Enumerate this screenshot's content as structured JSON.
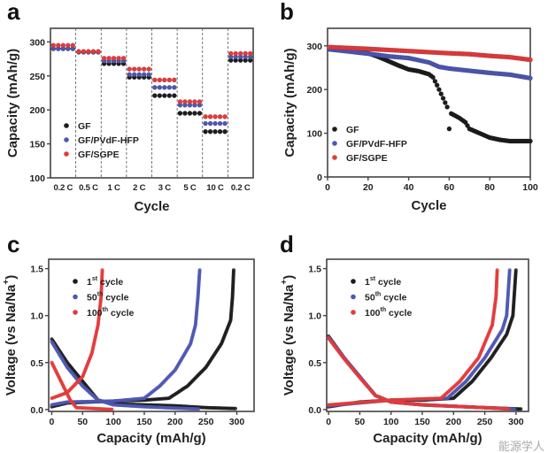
{
  "colors": {
    "black": "#1c1c1c",
    "blue": "#4d57b3",
    "red": "#e23b3b"
  },
  "watermark": "能源学人",
  "chart_data": [
    {
      "panel": "a",
      "type": "scatter",
      "xlabel": "Cycle",
      "ylabel": "Capacity (mAh/g)",
      "ylim": [
        100,
        320
      ],
      "yticks": [
        "100",
        "150",
        "200",
        "250",
        "300"
      ],
      "categories": [
        "0.2 C",
        "0.5 C",
        "1 C",
        "2 C",
        "3 C",
        "5 C",
        "10 C",
        "0.2 C"
      ],
      "points_per_category": 5,
      "legend_position": "lower-left",
      "series": [
        {
          "name": "GF",
          "color": "#1c1c1c",
          "values": [
            290,
            285,
            268,
            248,
            221,
            195,
            168,
            273
          ]
        },
        {
          "name": "GF/PVdF-HFP",
          "color": "#4d57b3",
          "values": [
            290,
            285,
            272,
            252,
            233,
            207,
            180,
            278
          ]
        },
        {
          "name": "GF/SGPE",
          "color": "#e23b3b",
          "values": [
            295,
            286,
            276,
            260,
            244,
            212,
            190,
            283
          ]
        }
      ]
    },
    {
      "panel": "b",
      "type": "scatter",
      "xlabel": "Cycle",
      "ylabel": "Capacity (mAh/g)",
      "xlim": [
        0,
        100
      ],
      "ylim": [
        0,
        340
      ],
      "xticks": [
        "0",
        "20",
        "40",
        "60",
        "80",
        "100"
      ],
      "yticks": [
        "0",
        "100",
        "200",
        "300"
      ],
      "legend_position": "lower-left",
      "series": [
        {
          "name": "GF",
          "color": "#1c1c1c",
          "points": [
            [
              1,
              292
            ],
            [
              10,
              288
            ],
            [
              20,
              283
            ],
            [
              25,
              275
            ],
            [
              30,
              265
            ],
            [
              35,
              255
            ],
            [
              40,
              246
            ],
            [
              45,
              242
            ],
            [
              50,
              235
            ],
            [
              52,
              228
            ],
            [
              54,
              210
            ],
            [
              56,
              190
            ],
            [
              58,
              170
            ],
            [
              59,
              160
            ],
            [
              60,
              110
            ],
            [
              61,
              145
            ],
            [
              65,
              135
            ],
            [
              68,
              125
            ],
            [
              70,
              110
            ],
            [
              75,
              100
            ],
            [
              80,
              90
            ],
            [
              85,
              85
            ],
            [
              90,
              82
            ],
            [
              100,
              82
            ]
          ]
        },
        {
          "name": "GF/PVdF-HFP",
          "color": "#4d57b3",
          "points": [
            [
              1,
              292
            ],
            [
              20,
              282
            ],
            [
              30,
              276
            ],
            [
              40,
              272
            ],
            [
              50,
              262
            ],
            [
              55,
              252
            ],
            [
              60,
              248
            ],
            [
              70,
              243
            ],
            [
              80,
              238
            ],
            [
              90,
              234
            ],
            [
              100,
              226
            ]
          ]
        },
        {
          "name": "GF/SGPE",
          "color": "#e23b3b",
          "points": [
            [
              1,
              297
            ],
            [
              20,
              293
            ],
            [
              40,
              288
            ],
            [
              60,
              283
            ],
            [
              70,
              281
            ],
            [
              80,
              277
            ],
            [
              90,
              274
            ],
            [
              100,
              268
            ]
          ]
        }
      ]
    },
    {
      "panel": "c",
      "type": "line",
      "xlabel": "Capacity (mAh/g)",
      "ylabel": "Voltage (vs Na/Na",
      "ylabel_sup": "+",
      "ylabel_end": ")",
      "xlim": [
        -5,
        328
      ],
      "ylim": [
        -0.02,
        1.6
      ],
      "xticks": [
        "0",
        "50",
        "100",
        "150",
        "200",
        "250",
        "300"
      ],
      "yticks": [
        "0.0",
        "0.5",
        "1.0",
        "1.5"
      ],
      "legend_position": "upper-left",
      "series": [
        {
          "name": "1",
          "sup": "st",
          "suffix": " cycle",
          "color": "#1c1c1c",
          "discharge": [
            [
              0,
              0.75
            ],
            [
              25,
              0.5
            ],
            [
              50,
              0.3
            ],
            [
              75,
              0.1
            ],
            [
              100,
              0.06
            ],
            [
              150,
              0.05
            ],
            [
              200,
              0.04
            ],
            [
              250,
              0.02
            ],
            [
              300,
              0.01
            ]
          ],
          "charge": [
            [
              0,
              0.03
            ],
            [
              25,
              0.07
            ],
            [
              100,
              0.09
            ],
            [
              150,
              0.1
            ],
            [
              190,
              0.12
            ],
            [
              220,
              0.25
            ],
            [
              250,
              0.45
            ],
            [
              275,
              0.7
            ],
            [
              290,
              0.95
            ],
            [
              293,
              1.2
            ],
            [
              295,
              1.5
            ]
          ]
        },
        {
          "name": "50",
          "sup": "th",
          "suffix": " cycle",
          "color": "#4d57b3",
          "discharge": [
            [
              0,
              0.72
            ],
            [
              25,
              0.45
            ],
            [
              50,
              0.25
            ],
            [
              75,
              0.1
            ],
            [
              100,
              0.05
            ],
            [
              150,
              0.03
            ],
            [
              200,
              0.015
            ],
            [
              240,
              0.005
            ]
          ],
          "charge": [
            [
              0,
              0.05
            ],
            [
              25,
              0.08
            ],
            [
              100,
              0.09
            ],
            [
              150,
              0.12
            ],
            [
              175,
              0.25
            ],
            [
              200,
              0.42
            ],
            [
              225,
              0.7
            ],
            [
              233,
              0.9
            ],
            [
              237,
              1.2
            ],
            [
              240,
              1.5
            ]
          ]
        },
        {
          "name": "100",
          "sup": "th",
          "suffix": " cycle",
          "color": "#e23b3b",
          "discharge": [
            [
              0,
              0.5
            ],
            [
              15,
              0.3
            ],
            [
              30,
              0.1
            ],
            [
              40,
              0.02
            ],
            [
              100,
              0
            ]
          ],
          "charge": [
            [
              0,
              0.12
            ],
            [
              25,
              0.18
            ],
            [
              50,
              0.35
            ],
            [
              65,
              0.6
            ],
            [
              75,
              0.9
            ],
            [
              80,
              1.2
            ],
            [
              82,
              1.5
            ]
          ]
        }
      ]
    },
    {
      "panel": "d",
      "type": "line",
      "xlabel": "Capacity (mAh/g)",
      "ylabel": "Voltage (vs Na/Na",
      "ylabel_sup": "+",
      "ylabel_end": ")",
      "xlim": [
        -3,
        320
      ],
      "ylim": [
        -0.02,
        1.6
      ],
      "xticks": [
        "0",
        "50",
        "100",
        "150",
        "200",
        "250",
        "300"
      ],
      "yticks": [
        "0.0",
        "0.5",
        "1.0",
        "1.5"
      ],
      "legend_position": "upper-left",
      "series": [
        {
          "name": "1",
          "sup": "st",
          "suffix": " cycle",
          "color": "#1c1c1c",
          "discharge": [
            [
              0,
              0.78
            ],
            [
              25,
              0.55
            ],
            [
              50,
              0.35
            ],
            [
              75,
              0.15
            ],
            [
              100,
              0.08
            ],
            [
              150,
              0.05
            ],
            [
              250,
              0.02
            ],
            [
              310,
              0.005
            ]
          ],
          "charge": [
            [
              0,
              0.03
            ],
            [
              50,
              0.08
            ],
            [
              100,
              0.1
            ],
            [
              150,
              0.1
            ],
            [
              200,
              0.12
            ],
            [
              230,
              0.3
            ],
            [
              260,
              0.55
            ],
            [
              285,
              0.8
            ],
            [
              295,
              1.0
            ],
            [
              300,
              1.5
            ]
          ]
        },
        {
          "name": "50",
          "sup": "th",
          "suffix": " cycle",
          "color": "#4d57b3",
          "discharge": [
            [
              0,
              0.77
            ],
            [
              25,
              0.55
            ],
            [
              50,
              0.35
            ],
            [
              75,
              0.15
            ],
            [
              100,
              0.08
            ],
            [
              150,
              0.05
            ],
            [
              250,
              0.02
            ],
            [
              300,
              0.005
            ]
          ],
          "charge": [
            [
              0,
              0.04
            ],
            [
              100,
              0.1
            ],
            [
              190,
              0.12
            ],
            [
              220,
              0.3
            ],
            [
              250,
              0.55
            ],
            [
              278,
              0.85
            ],
            [
              285,
              1.0
            ],
            [
              290,
              1.5
            ]
          ]
        },
        {
          "name": "100",
          "sup": "th",
          "suffix": " cycle",
          "color": "#e23b3b",
          "discharge": [
            [
              0,
              0.76
            ],
            [
              25,
              0.54
            ],
            [
              50,
              0.34
            ],
            [
              75,
              0.15
            ],
            [
              100,
              0.08
            ],
            [
              150,
              0.05
            ],
            [
              250,
              0.02
            ],
            [
              290,
              0.005
            ]
          ],
          "charge": [
            [
              0,
              0.05
            ],
            [
              100,
              0.1
            ],
            [
              180,
              0.12
            ],
            [
              210,
              0.3
            ],
            [
              240,
              0.55
            ],
            [
              262,
              0.9
            ],
            [
              268,
              1.2
            ],
            [
              270,
              1.5
            ]
          ]
        }
      ]
    }
  ]
}
